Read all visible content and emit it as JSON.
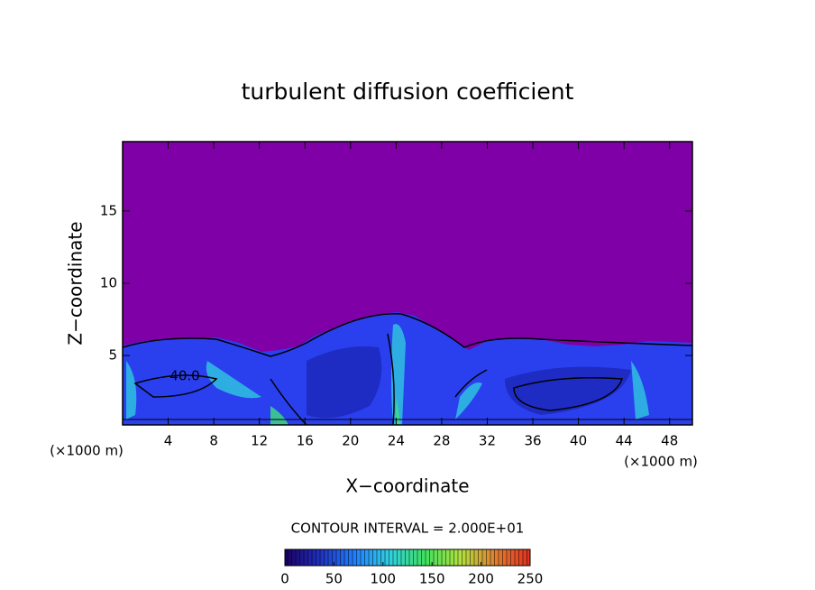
{
  "chart_data": {
    "type": "contour",
    "title": "turbulent diffusion coefficient",
    "x_label": "X−coordinate",
    "y_label": "Z−coordinate",
    "x_unit_left": "(×1000 m)",
    "x_unit_right": "(×1000 m)",
    "xlim": [
      0,
      50
    ],
    "xticks": [
      4,
      8,
      12,
      16,
      20,
      24,
      28,
      32,
      36,
      40,
      44,
      48
    ],
    "ylim": [
      0.2,
      19.8
    ],
    "yticks": [
      5,
      10,
      15
    ],
    "background_color": "#8000a8",
    "contour_label": "40.0",
    "contour_interval": "CONTOUR INTERVAL = 2.000E+01",
    "colorbar_lim": [
      0,
      250
    ],
    "colorbar_ticks": [
      0,
      50,
      100,
      150,
      200,
      250
    ],
    "colormap": [
      "#1a0060",
      "#2030c0",
      "#2080ff",
      "#30d0e0",
      "#40e060",
      "#b0e040",
      "#e08030",
      "#e03020"
    ]
  }
}
